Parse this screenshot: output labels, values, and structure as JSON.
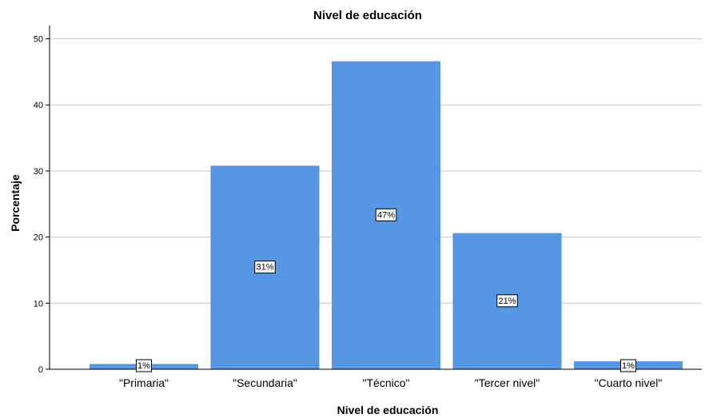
{
  "chart_data": {
    "type": "bar",
    "title": "Nivel de educación",
    "xlabel": "Nivel de educación",
    "ylabel": "Porcentaje",
    "categories": [
      "\"Primaria\"",
      "\"Secundaria\"",
      "\"Técnico\"",
      "\"Tercer nivel\"",
      "\"Cuarto nivel\""
    ],
    "values": [
      0.8,
      30.8,
      46.6,
      20.6,
      1.2
    ],
    "data_labels": [
      "1%",
      "31%",
      "47%",
      "21%",
      "1%"
    ],
    "ylim": [
      0,
      52
    ],
    "yticks": [
      0,
      10,
      20,
      30,
      40,
      50
    ],
    "grid": true,
    "bar_color": "#5596e5"
  }
}
